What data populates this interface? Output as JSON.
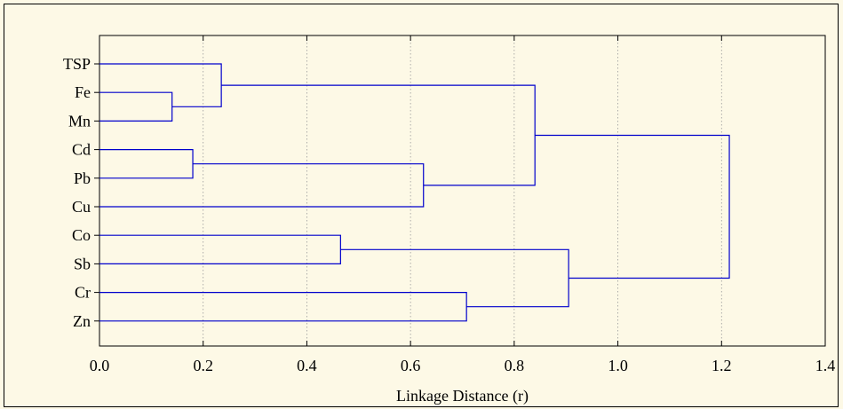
{
  "chart_data": {
    "type": "dendrogram",
    "orientation": "horizontal",
    "xlabel": "Linkage Distance (r)",
    "xlim": [
      0.0,
      1.4
    ],
    "xticks": [
      "0.0",
      "0.2",
      "0.4",
      "0.6",
      "0.8",
      "1.0",
      "1.2",
      "1.4"
    ],
    "grid": true,
    "leaves": [
      "TSP",
      "Fe",
      "Mn",
      "Cd",
      "Pb",
      "Cu",
      "Co",
      "Sb",
      "Cr",
      "Zn"
    ],
    "merges": [
      {
        "a": "Fe",
        "b": "Mn",
        "distance": 0.14
      },
      {
        "a": "TSP",
        "b": "Fe+Mn",
        "distance": 0.235
      },
      {
        "a": "Cd",
        "b": "Pb",
        "distance": 0.18
      },
      {
        "a": "Cd+Pb",
        "b": "Cu",
        "distance": 0.625
      },
      {
        "a": "TSP+Fe+Mn",
        "b": "Cd+Pb+Cu",
        "distance": 0.84
      },
      {
        "a": "Co",
        "b": "Sb",
        "distance": 0.465
      },
      {
        "a": "Cr",
        "b": "Zn",
        "distance": 0.708
      },
      {
        "a": "Co+Sb",
        "b": "Cr+Zn",
        "distance": 0.905
      },
      {
        "a": "TSP+Fe+Mn+Cd+Pb+Cu",
        "b": "Co+Sb+Cr+Zn",
        "distance": 1.215
      }
    ],
    "line_color": "#0000cc"
  }
}
